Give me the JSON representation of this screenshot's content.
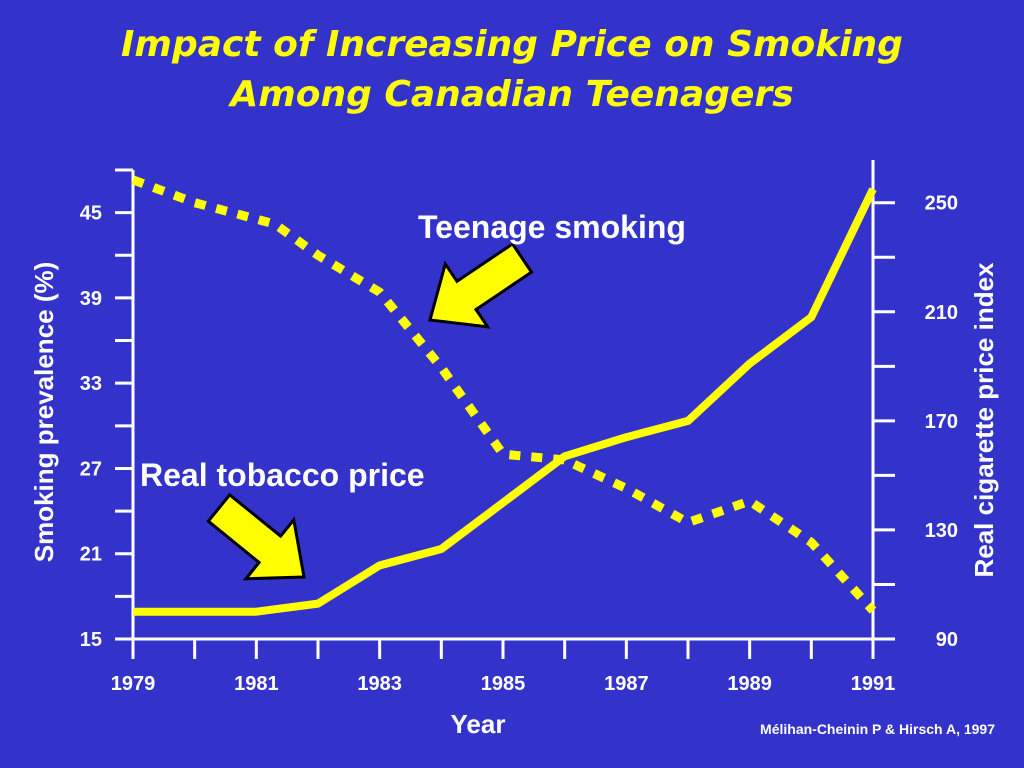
{
  "title_lines": [
    "Impact of Increasing Price on Smoking",
    "Among Canadian Teenagers"
  ],
  "colors": {
    "background": "#3333cc",
    "series": "#ffff00",
    "axis": "#ffffff",
    "arrow_outline": "#000000"
  },
  "credit": "Mélihan-Cheinin P & Hirsch A, 1997",
  "chart_data": {
    "type": "line",
    "title": "Impact of Increasing Price on Smoking Among Canadian Teenagers",
    "xlabel": "Year",
    "ylabel_left": "Smoking prevalence (%)",
    "ylabel_right": "Real cigarette price index",
    "xlim": [
      1979,
      1991
    ],
    "ylim_left": [
      15,
      48
    ],
    "ylim_right": [
      90,
      262
    ],
    "x_ticks": [
      1979,
      1981,
      1983,
      1985,
      1987,
      1989,
      1991
    ],
    "y_ticks_left": [
      15,
      21,
      27,
      33,
      39,
      45
    ],
    "y_ticks_right": [
      90,
      130,
      170,
      210,
      250
    ],
    "grid": false,
    "legend": "none",
    "series": [
      {
        "name": "Teenage smoking",
        "axis": "left",
        "style": "dotted",
        "points": [
          [
            1979,
            47.3
          ],
          [
            1980,
            45.7
          ],
          [
            1981.3,
            44.2
          ],
          [
            1982,
            42.0
          ],
          [
            1983,
            39.4
          ],
          [
            1984,
            34.1
          ],
          [
            1985,
            28.0
          ],
          [
            1986,
            27.6
          ],
          [
            1987,
            25.6
          ],
          [
            1988,
            23.2
          ],
          [
            1989,
            24.7
          ],
          [
            1990,
            21.8
          ],
          [
            1991,
            17.0
          ]
        ]
      },
      {
        "name": "Real tobacco price",
        "axis": "right",
        "style": "solid",
        "points": [
          [
            1979,
            100
          ],
          [
            1980,
            100
          ],
          [
            1981,
            100
          ],
          [
            1982,
            103
          ],
          [
            1983,
            117
          ],
          [
            1984,
            123
          ],
          [
            1985,
            140
          ],
          [
            1986,
            157
          ],
          [
            1987,
            164
          ],
          [
            1988,
            170
          ],
          [
            1989,
            191
          ],
          [
            1990,
            208
          ],
          [
            1991,
            255
          ]
        ]
      }
    ],
    "annotations": [
      {
        "text": "Teenage smoking",
        "points_to": "Teenage smoking"
      },
      {
        "text": "Real tobacco price",
        "points_to": "Real tobacco price"
      }
    ]
  }
}
